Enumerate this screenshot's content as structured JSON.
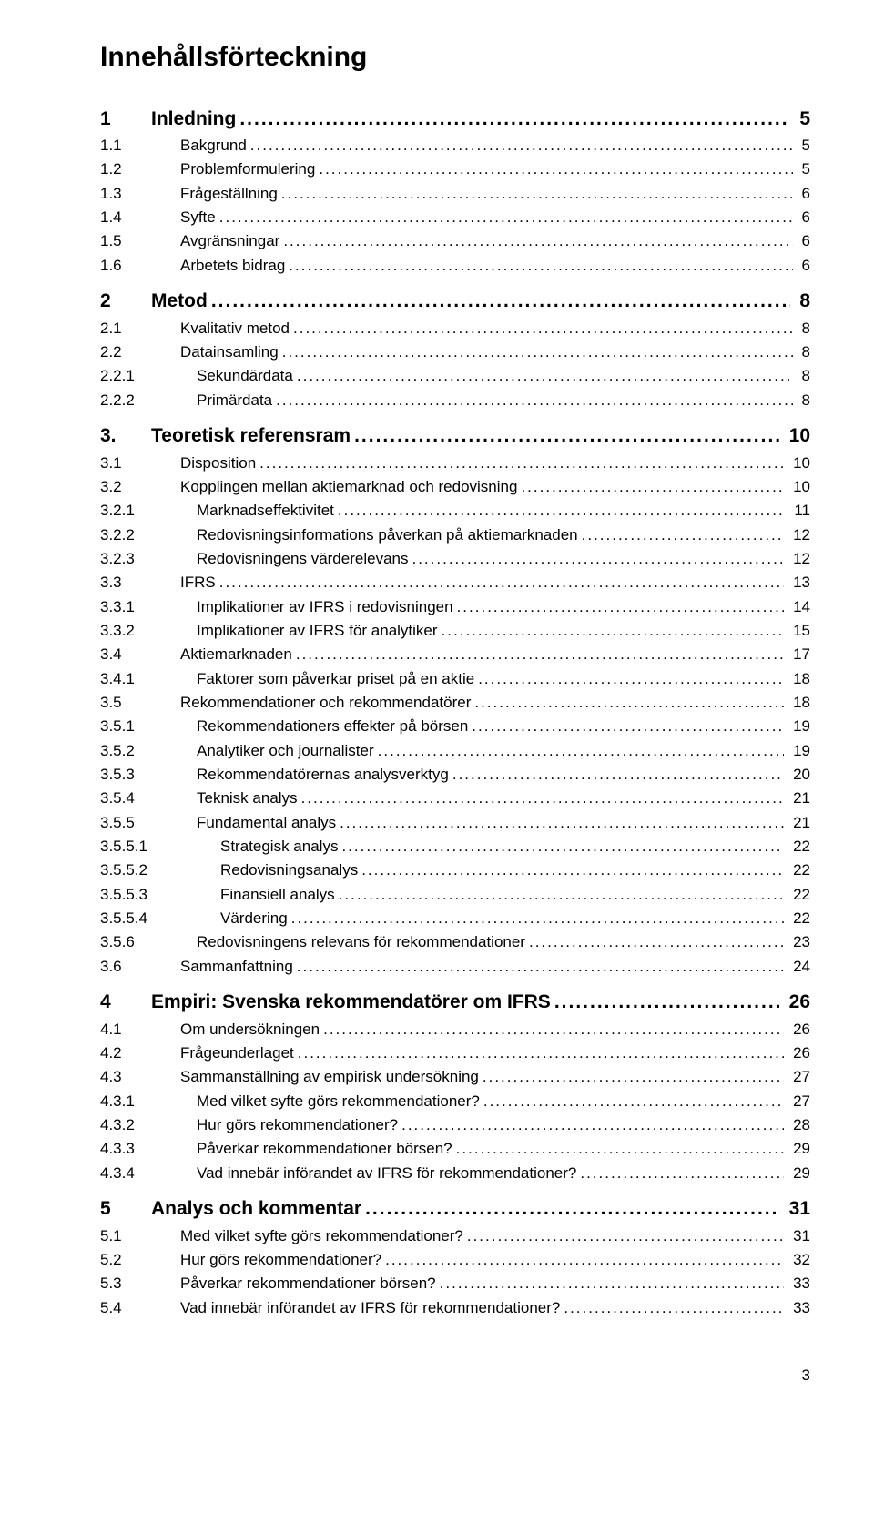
{
  "title": "Innehållsförteckning",
  "footer_page": "3",
  "entries": [
    {
      "level": 1,
      "num": "1",
      "label": "Inledning",
      "page": "5"
    },
    {
      "level": 2,
      "num": "1.1",
      "label": "Bakgrund",
      "page": "5"
    },
    {
      "level": 2,
      "num": "1.2",
      "label": "Problemformulering",
      "page": "5"
    },
    {
      "level": 2,
      "num": "1.3",
      "label": "Frågeställning",
      "page": "6"
    },
    {
      "level": 2,
      "num": "1.4",
      "label": "Syfte",
      "page": "6"
    },
    {
      "level": 2,
      "num": "1.5",
      "label": "Avgränsningar",
      "page": "6"
    },
    {
      "level": 2,
      "num": "1.6",
      "label": "Arbetets bidrag",
      "page": "6"
    },
    {
      "level": 0,
      "gap": true
    },
    {
      "level": 1,
      "num": "2",
      "label": "Metod",
      "page": "8"
    },
    {
      "level": 2,
      "num": "2.1",
      "label": "Kvalitativ metod",
      "page": "8"
    },
    {
      "level": 2,
      "num": "2.2",
      "label": "Datainsamling",
      "page": "8"
    },
    {
      "level": 3,
      "num": "2.2.1",
      "label": "Sekundärdata",
      "page": "8"
    },
    {
      "level": 3,
      "num": "2.2.2",
      "label": "Primärdata",
      "page": "8"
    },
    {
      "level": 0,
      "gap": true
    },
    {
      "level": 1,
      "num": "3.",
      "label": "Teoretisk referensram",
      "page": "10"
    },
    {
      "level": 2,
      "num": "3.1",
      "label": "Disposition",
      "page": "10"
    },
    {
      "level": 2,
      "num": "3.2",
      "label": "Kopplingen mellan aktiemarknad och redovisning",
      "page": "10"
    },
    {
      "level": 3,
      "num": "3.2.1",
      "label": "Marknadseffektivitet",
      "page": "11"
    },
    {
      "level": 3,
      "num": "3.2.2",
      "label": "Redovisningsinformations påverkan på aktiemarknaden",
      "page": "12"
    },
    {
      "level": 3,
      "num": "3.2.3",
      "label": "Redovisningens värderelevans",
      "page": "12"
    },
    {
      "level": 2,
      "num": "3.3",
      "label": "IFRS",
      "page": "13"
    },
    {
      "level": 3,
      "num": "3.3.1",
      "label": "Implikationer av IFRS i redovisningen",
      "page": "14"
    },
    {
      "level": 3,
      "num": "3.3.2",
      "label": "Implikationer av IFRS för analytiker",
      "page": "15"
    },
    {
      "level": 2,
      "num": "3.4",
      "label": "Aktiemarknaden",
      "page": "17"
    },
    {
      "level": 3,
      "num": "3.4.1",
      "label": "Faktorer som påverkar priset på en aktie",
      "page": "18"
    },
    {
      "level": 2,
      "num": "3.5",
      "label": "Rekommendationer och rekommendatörer",
      "page": "18"
    },
    {
      "level": 3,
      "num": "3.5.1",
      "label": "Rekommendationers effekter på börsen",
      "page": "19"
    },
    {
      "level": 3,
      "num": "3.5.2",
      "label": "Analytiker och journalister",
      "page": "19"
    },
    {
      "level": 3,
      "num": "3.5.3",
      "label": "Rekommendatörernas analysverktyg",
      "page": "20"
    },
    {
      "level": 3,
      "num": "3.5.4",
      "label": "Teknisk analys",
      "page": "21"
    },
    {
      "level": 3,
      "num": "3.5.5",
      "label": "Fundamental analys",
      "page": "21"
    },
    {
      "level": 4,
      "num": "3.5.5.1",
      "label": "Strategisk analys",
      "page": "22"
    },
    {
      "level": 4,
      "num": "3.5.5.2",
      "label": "Redovisningsanalys",
      "page": "22"
    },
    {
      "level": 4,
      "num": "3.5.5.3",
      "label": "Finansiell analys",
      "page": "22"
    },
    {
      "level": 4,
      "num": "3.5.5.4",
      "label": "Värdering",
      "page": "22"
    },
    {
      "level": 3,
      "num": "3.5.6",
      "label": "Redovisningens relevans för rekommendationer",
      "page": "23"
    },
    {
      "level": 2,
      "num": "3.6",
      "label": "Sammanfattning",
      "page": "24"
    },
    {
      "level": 0,
      "gap": true
    },
    {
      "level": 1,
      "num": "4",
      "label": "Empiri: Svenska rekommendatörer om IFRS",
      "page": "26"
    },
    {
      "level": 2,
      "num": "4.1",
      "label": "Om undersökningen",
      "page": "26"
    },
    {
      "level": 2,
      "num": "4.2",
      "label": "Frågeunderlaget",
      "page": "26"
    },
    {
      "level": 2,
      "num": "4.3",
      "label": "Sammanställning av empirisk undersökning",
      "page": "27"
    },
    {
      "level": 3,
      "num": "4.3.1",
      "label": "Med vilket syfte görs rekommendationer?",
      "page": "27"
    },
    {
      "level": 3,
      "num": "4.3.2",
      "label": "Hur görs rekommendationer?",
      "page": "28"
    },
    {
      "level": 3,
      "num": "4.3.3",
      "label": "Påverkar rekommendationer börsen?",
      "page": "29"
    },
    {
      "level": 3,
      "num": "4.3.4",
      "label": "Vad innebär införandet av IFRS för rekommendationer?",
      "page": "29"
    },
    {
      "level": 0,
      "gap": true
    },
    {
      "level": 1,
      "num": "5",
      "label": "Analys och kommentar",
      "page": "31"
    },
    {
      "level": 2,
      "num": "5.1",
      "label": "Med vilket syfte görs rekommendationer?",
      "page": "31"
    },
    {
      "level": 2,
      "num": "5.2",
      "label": "Hur görs rekommendationer?",
      "page": "32"
    },
    {
      "level": 2,
      "num": "5.3",
      "label": "Påverkar rekommendationer börsen?",
      "page": "33"
    },
    {
      "level": 2,
      "num": "5.4",
      "label": "Vad innebär införandet av IFRS för rekommendationer?",
      "page": "33"
    }
  ]
}
